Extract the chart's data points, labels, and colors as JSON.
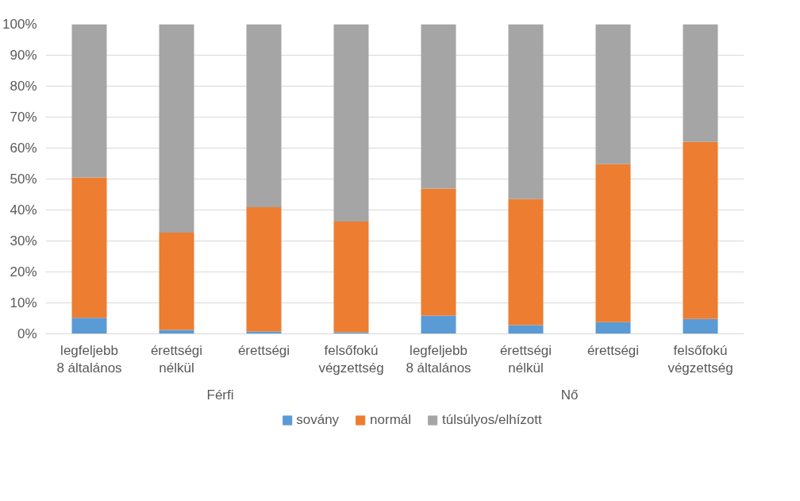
{
  "chart_data": {
    "type": "bar",
    "stacked": true,
    "categories": [
      "legfeljebb 8 általános",
      "érettségi nélkül",
      "érettségi",
      "felsőfokú végzettség",
      "legfeljebb 8 általános",
      "érettségi nélkül",
      "érettségi",
      "felsőfokú végzettség"
    ],
    "annotations": [
      "Férfi",
      "Nő"
    ],
    "series": [
      {
        "name": "sovány",
        "color": "#5b9bd5",
        "values": [
          5.2,
          1.3,
          0.8,
          0.5,
          5.9,
          2.8,
          3.8,
          4.8
        ]
      },
      {
        "name": "normál",
        "color": "#ed7d31",
        "values": [
          45.3,
          31.4,
          40.1,
          35.8,
          41.0,
          40.7,
          51.0,
          57.2
        ]
      },
      {
        "name": "túlsúlyos/elhízott",
        "color": "#a5a5a5",
        "values": [
          49.5,
          67.3,
          59.1,
          63.7,
          53.1,
          56.5,
          45.2,
          38.0
        ]
      }
    ],
    "ylim": [
      0,
      100
    ],
    "yticks": [
      {
        "value": 0,
        "label": "0%"
      },
      {
        "value": 10,
        "label": "10%"
      },
      {
        "value": 20,
        "label": "20%"
      },
      {
        "value": 30,
        "label": "30%"
      },
      {
        "value": 40,
        "label": "40%"
      },
      {
        "value": 50,
        "label": "50%"
      },
      {
        "value": 60,
        "label": "60%"
      },
      {
        "value": 70,
        "label": "70%"
      },
      {
        "value": 80,
        "label": "80%"
      },
      {
        "value": 90,
        "label": "90%"
      },
      {
        "value": 100,
        "label": "100%"
      }
    ],
    "grid": "y",
    "legend": "bottom"
  }
}
